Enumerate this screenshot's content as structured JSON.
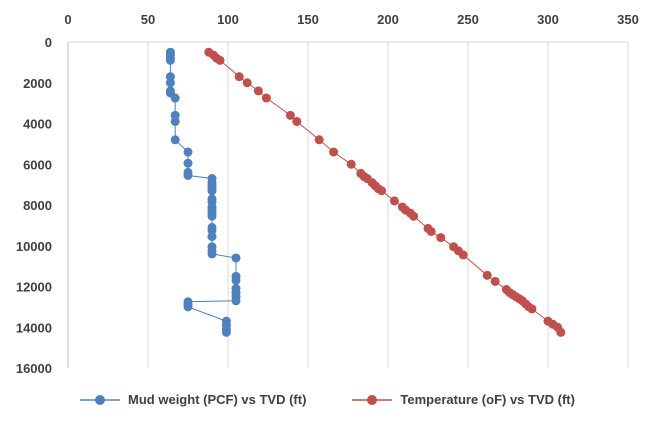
{
  "chart_data": {
    "type": "scatter",
    "title": "",
    "xlabel": "",
    "ylabel": "",
    "x_axis_position": "top",
    "y_axis_reversed": true,
    "xlim": [
      0,
      350
    ],
    "ylim": [
      0,
      16000
    ],
    "x_ticks": [
      0,
      50,
      100,
      150,
      200,
      250,
      300,
      350
    ],
    "y_ticks": [
      0,
      2000,
      4000,
      6000,
      8000,
      10000,
      12000,
      14000,
      16000
    ],
    "grid": "vertical",
    "legend_position": "bottom",
    "series": [
      {
        "name": "Mud weight (PCF) vs TVD (ft)",
        "color": "#4f81bd",
        "marker": "circle",
        "line": true,
        "points": [
          [
            64,
            500
          ],
          [
            64,
            650
          ],
          [
            64,
            800
          ],
          [
            64,
            900
          ],
          [
            64,
            1700
          ],
          [
            64,
            2000
          ],
          [
            64,
            2400
          ],
          [
            64,
            2500
          ],
          [
            67,
            2750
          ],
          [
            67,
            3600
          ],
          [
            67,
            3900
          ],
          [
            67,
            4800
          ],
          [
            75,
            5400
          ],
          [
            75,
            5950
          ],
          [
            75,
            6400
          ],
          [
            75,
            6550
          ],
          [
            90,
            6700
          ],
          [
            90,
            6900
          ],
          [
            90,
            7050
          ],
          [
            90,
            7200
          ],
          [
            90,
            7300
          ],
          [
            90,
            7700
          ],
          [
            90,
            7850
          ],
          [
            90,
            8100
          ],
          [
            90,
            8250
          ],
          [
            90,
            8400
          ],
          [
            90,
            8550
          ],
          [
            90,
            9100
          ],
          [
            90,
            9250
          ],
          [
            90,
            9550
          ],
          [
            90,
            10050
          ],
          [
            90,
            10250
          ],
          [
            90,
            10400
          ],
          [
            105,
            10600
          ],
          [
            105,
            11500
          ],
          [
            105,
            11700
          ],
          [
            105,
            12100
          ],
          [
            105,
            12300
          ],
          [
            105,
            12500
          ],
          [
            105,
            12700
          ],
          [
            75,
            12750
          ],
          [
            75,
            12900
          ],
          [
            75,
            13000
          ],
          [
            99,
            13700
          ],
          [
            99,
            13900
          ],
          [
            99,
            14100
          ],
          [
            99,
            14250
          ]
        ]
      },
      {
        "name": "Temperature (oF) vs TVD (ft)",
        "color": "#c0504d",
        "marker": "circle",
        "line": true,
        "points": [
          [
            88,
            500
          ],
          [
            91,
            650
          ],
          [
            93,
            800
          ],
          [
            95,
            900
          ],
          [
            107,
            1700
          ],
          [
            112,
            2000
          ],
          [
            119,
            2400
          ],
          [
            124,
            2750
          ],
          [
            139,
            3600
          ],
          [
            143,
            3900
          ],
          [
            157,
            4800
          ],
          [
            166,
            5400
          ],
          [
            177,
            6000
          ],
          [
            183,
            6450
          ],
          [
            185,
            6600
          ],
          [
            187,
            6700
          ],
          [
            190,
            6900
          ],
          [
            192,
            7050
          ],
          [
            194,
            7200
          ],
          [
            196,
            7300
          ],
          [
            204,
            7800
          ],
          [
            209,
            8100
          ],
          [
            211,
            8250
          ],
          [
            214,
            8400
          ],
          [
            216,
            8550
          ],
          [
            225,
            9150
          ],
          [
            227,
            9300
          ],
          [
            233,
            9600
          ],
          [
            241,
            10050
          ],
          [
            244,
            10250
          ],
          [
            247,
            10450
          ],
          [
            262,
            11450
          ],
          [
            267,
            11750
          ],
          [
            274,
            12150
          ],
          [
            276,
            12300
          ],
          [
            278,
            12400
          ],
          [
            280,
            12500
          ],
          [
            282,
            12600
          ],
          [
            284,
            12700
          ],
          [
            286,
            12850
          ],
          [
            288,
            13000
          ],
          [
            290,
            13100
          ],
          [
            300,
            13700
          ],
          [
            303,
            13850
          ],
          [
            306,
            14000
          ],
          [
            308,
            14250
          ]
        ]
      }
    ]
  }
}
